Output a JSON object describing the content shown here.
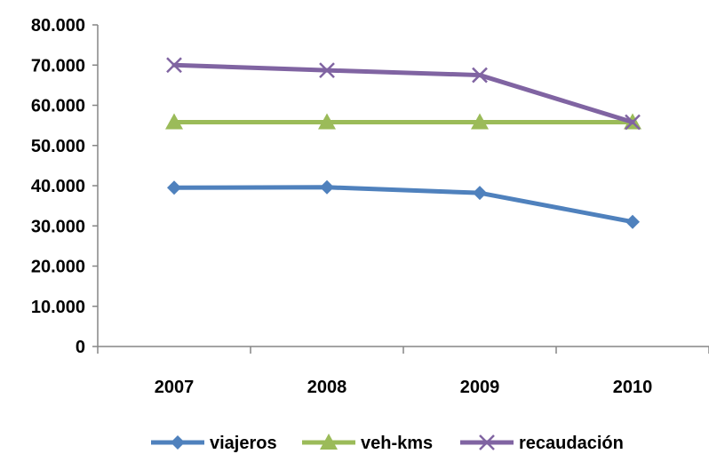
{
  "chart_data": {
    "type": "line",
    "categories": [
      "2007",
      "2008",
      "2009",
      "2010"
    ],
    "y_tick_labels": [
      "0",
      "10.000",
      "20.000",
      "30.000",
      "40.000",
      "50.000",
      "60.000",
      "70.000",
      "80.000"
    ],
    "ylim": [
      0,
      80000
    ],
    "grid": false,
    "legend_position": "bottom",
    "series": [
      {
        "name": "viajeros",
        "values": [
          39500,
          39600,
          38200,
          31000
        ],
        "color": "#4f81bd",
        "marker": "diamond"
      },
      {
        "name": "veh-kms",
        "values": [
          55800,
          55800,
          55800,
          55800
        ],
        "color": "#9bbb59",
        "marker": "triangle"
      },
      {
        "name": "recaudación",
        "values": [
          70000,
          68700,
          67500,
          55800
        ],
        "color": "#8064a2",
        "marker": "x"
      }
    ]
  }
}
